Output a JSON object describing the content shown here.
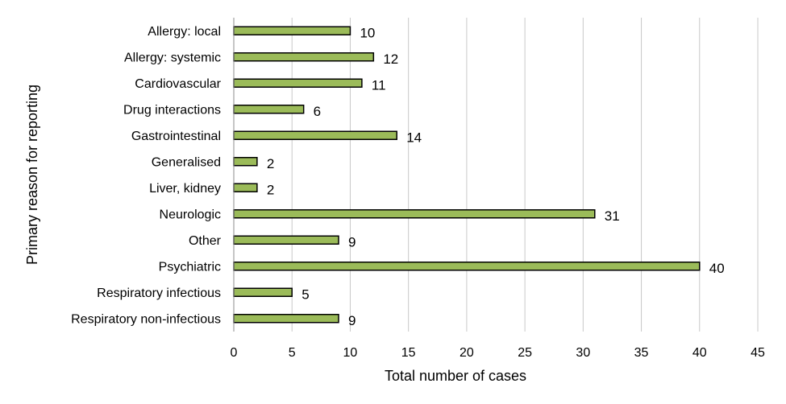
{
  "chart_data": {
    "type": "bar",
    "orientation": "horizontal",
    "categories": [
      "Allergy: local",
      "Allergy: systemic",
      "Cardiovascular",
      "Drug interactions",
      "Gastrointestinal",
      "Generalised",
      "Liver, kidney",
      "Neurologic",
      "Other",
      "Psychiatric",
      "Respiratory infectious",
      "Respiratory non-infectious"
    ],
    "values": [
      10,
      12,
      11,
      6,
      14,
      2,
      2,
      31,
      9,
      40,
      5,
      9
    ],
    "xlabel": "Total number  of cases",
    "ylabel": "Primary reason for reporting",
    "xlim": [
      0,
      45
    ],
    "xticks": [
      "0",
      "5",
      "10",
      "15",
      "20",
      "25",
      "30",
      "35",
      "40",
      "45"
    ],
    "grid": true,
    "legend": "none",
    "bar_color": "#9bbb59",
    "data_labels": true
  }
}
